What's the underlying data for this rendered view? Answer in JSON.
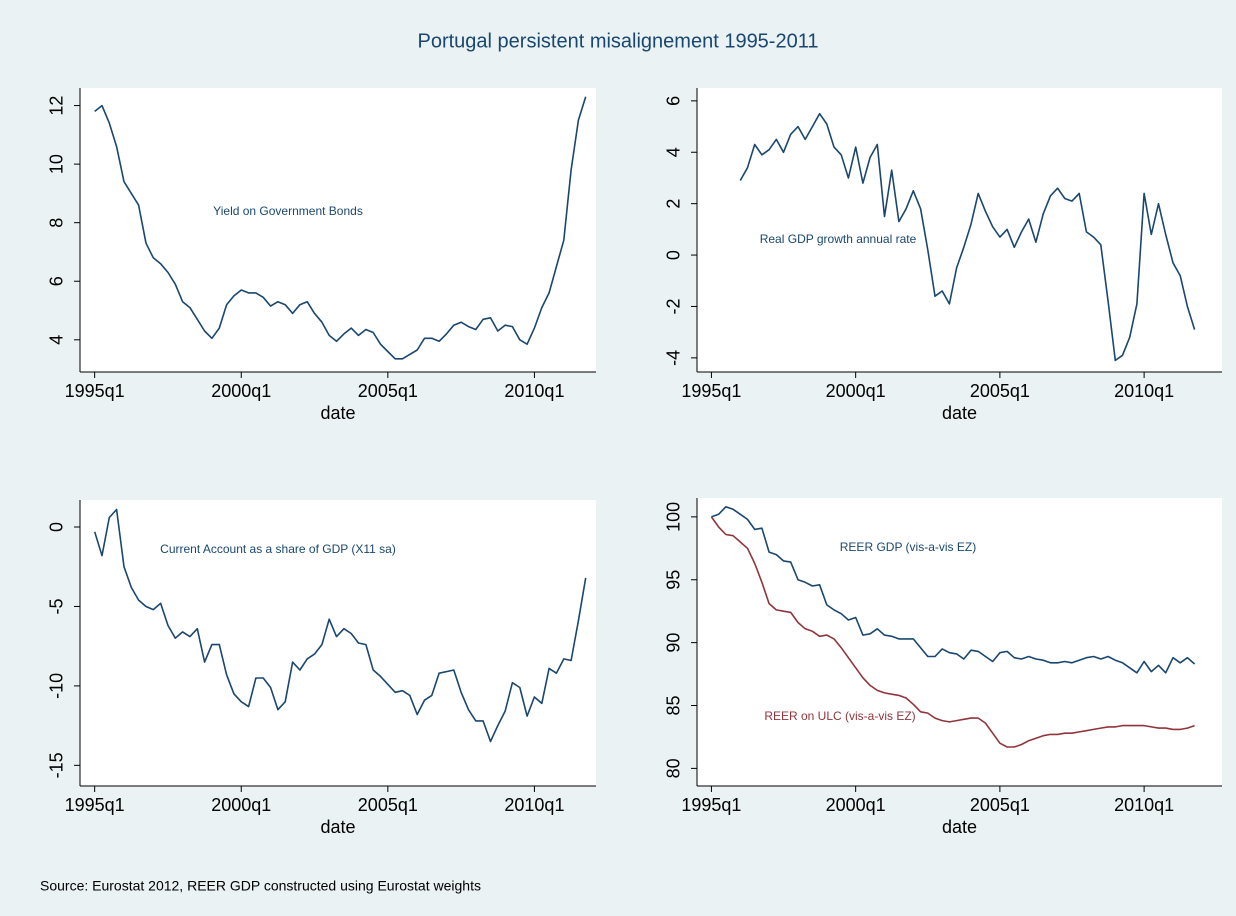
{
  "title": "Portugal persistent misalignement 1995-2011",
  "source": "Source: Eurostat 2012, REER GDP constructed using Eurostat weights",
  "chart_data": [
    {
      "type": "line",
      "x_label": "date",
      "x": [
        1995,
        1995.25,
        1995.5,
        1995.75,
        1996,
        1996.25,
        1996.5,
        1996.75,
        1997,
        1997.25,
        1997.5,
        1997.75,
        1998,
        1998.25,
        1998.5,
        1998.75,
        1999,
        1999.25,
        1999.5,
        1999.75,
        2000,
        2000.25,
        2000.5,
        2000.75,
        2001,
        2001.25,
        2001.5,
        2001.75,
        2002,
        2002.25,
        2002.5,
        2002.75,
        2003,
        2003.25,
        2003.5,
        2003.75,
        2004,
        2004.25,
        2004.5,
        2004.75,
        2005,
        2005.25,
        2005.5,
        2005.75,
        2006,
        2006.25,
        2006.5,
        2006.75,
        2007,
        2007.25,
        2007.5,
        2007.75,
        2008,
        2008.25,
        2008.5,
        2008.75,
        2009,
        2009.25,
        2009.5,
        2009.75,
        2010,
        2010.25,
        2010.5,
        2010.75,
        2011,
        2011.25,
        2011.5,
        2011.75
      ],
      "series": [
        {
          "name": "Yield on Government Bonds",
          "color": "#1a476f",
          "values": [
            11.8,
            12,
            11.4,
            10.6,
            9.4,
            9.0,
            8.6,
            7.3,
            6.8,
            6.6,
            6.3,
            5.9,
            5.3,
            5.1,
            4.7,
            4.3,
            4.05,
            4.4,
            5.2,
            5.5,
            5.7,
            5.6,
            5.6,
            5.45,
            5.15,
            5.3,
            5.2,
            4.9,
            5.2,
            5.3,
            4.9,
            4.6,
            4.15,
            3.95,
            4.2,
            4.4,
            4.15,
            4.35,
            4.25,
            3.85,
            3.6,
            3.35,
            3.35,
            3.5,
            3.65,
            4.05,
            4.05,
            3.95,
            4.2,
            4.5,
            4.6,
            4.45,
            4.35,
            4.7,
            4.75,
            4.3,
            4.5,
            4.45,
            4.0,
            3.85,
            4.4,
            5.1,
            5.6,
            6.5,
            7.4,
            9.8,
            11.5,
            12.3
          ]
        }
      ],
      "xlim": [
        1994.5,
        2012.1
      ],
      "xticks": [
        {
          "value": 1995,
          "label": "1995q1"
        },
        {
          "value": 2000,
          "label": "2000q1"
        },
        {
          "value": 2005,
          "label": "2005q1"
        },
        {
          "value": 2010,
          "label": "2010q1"
        }
      ],
      "ylim": [
        2.9,
        12.6
      ],
      "yticks": [
        4,
        6,
        8,
        10,
        12
      ]
    },
    {
      "type": "line",
      "x_label": "date",
      "x": [
        1995,
        1995.25,
        1995.5,
        1995.75,
        1996,
        1996.25,
        1996.5,
        1996.75,
        1997,
        1997.25,
        1997.5,
        1997.75,
        1998,
        1998.25,
        1998.5,
        1998.75,
        1999,
        1999.25,
        1999.5,
        1999.75,
        2000,
        2000.25,
        2000.5,
        2000.75,
        2001,
        2001.25,
        2001.5,
        2001.75,
        2002,
        2002.25,
        2002.5,
        2002.75,
        2003,
        2003.25,
        2003.5,
        2003.75,
        2004,
        2004.25,
        2004.5,
        2004.75,
        2005,
        2005.25,
        2005.5,
        2005.75,
        2006,
        2006.25,
        2006.5,
        2006.75,
        2007,
        2007.25,
        2007.5,
        2007.75,
        2008,
        2008.25,
        2008.5,
        2008.75,
        2009,
        2009.25,
        2009.5,
        2009.75,
        2010,
        2010.25,
        2010.5,
        2010.75,
        2011,
        2011.25,
        2011.5,
        2011.75
      ],
      "series": [
        {
          "name": "Real GDP growth annual rate",
          "color": "#1a476f",
          "values": [
            null,
            null,
            null,
            null,
            2.9,
            3.4,
            4.3,
            3.9,
            4.1,
            4.5,
            4.0,
            4.7,
            5.0,
            4.5,
            5.0,
            5.5,
            5.1,
            4.2,
            3.9,
            3.0,
            4.2,
            2.8,
            3.8,
            4.3,
            1.5,
            3.3,
            1.3,
            1.8,
            2.5,
            1.8,
            0.2,
            -1.6,
            -1.4,
            -1.9,
            -0.5,
            0.3,
            1.2,
            2.4,
            1.7,
            1.1,
            0.7,
            1.0,
            0.3,
            0.9,
            1.4,
            0.5,
            1.6,
            2.3,
            2.6,
            2.2,
            2.1,
            2.4,
            0.9,
            0.7,
            0.4,
            -1.8,
            -4.1,
            -3.9,
            -3.2,
            -1.9,
            2.4,
            0.8,
            2.0,
            0.8,
            -0.3,
            -0.8,
            -2.0,
            -2.9
          ]
        }
      ],
      "xlim": [
        1994.5,
        2012.7
      ],
      "xticks": [
        {
          "value": 1995,
          "label": "1995q1"
        },
        {
          "value": 2000,
          "label": "2000q1"
        },
        {
          "value": 2005,
          "label": "2005q1"
        },
        {
          "value": 2010,
          "label": "2010q1"
        }
      ],
      "ylim": [
        -4.55,
        6.5
      ],
      "yticks": [
        -4,
        -2,
        0,
        2,
        4,
        6
      ]
    },
    {
      "type": "line",
      "x_label": "date",
      "x": [
        1995,
        1995.25,
        1995.5,
        1995.75,
        1996,
        1996.25,
        1996.5,
        1996.75,
        1997,
        1997.25,
        1997.5,
        1997.75,
        1998,
        1998.25,
        1998.5,
        1998.75,
        1999,
        1999.25,
        1999.5,
        1999.75,
        2000,
        2000.25,
        2000.5,
        2000.75,
        2001,
        2001.25,
        2001.5,
        2001.75,
        2002,
        2002.25,
        2002.5,
        2002.75,
        2003,
        2003.25,
        2003.5,
        2003.75,
        2004,
        2004.25,
        2004.5,
        2004.75,
        2005,
        2005.25,
        2005.5,
        2005.75,
        2006,
        2006.25,
        2006.5,
        2006.75,
        2007,
        2007.25,
        2007.5,
        2007.75,
        2008,
        2008.25,
        2008.5,
        2008.75,
        2009,
        2009.25,
        2009.5,
        2009.75,
        2010,
        2010.25,
        2010.5,
        2010.75,
        2011,
        2011.25,
        2011.5,
        2011.75
      ],
      "series": [
        {
          "name": "Current Account as a share of GDP (X11 sa)",
          "color": "#1a476f",
          "values": [
            -0.3,
            -1.8,
            0.6,
            1.1,
            -2.5,
            -3.8,
            -4.6,
            -5.0,
            -5.2,
            -4.8,
            -6.2,
            -7.0,
            -6.6,
            -6.9,
            -6.4,
            -8.5,
            -7.4,
            -7.4,
            -9.3,
            -10.5,
            -11.0,
            -11.3,
            -9.5,
            -9.5,
            -10.1,
            -11.5,
            -11.0,
            -8.5,
            -9.0,
            -8.3,
            -8.0,
            -7.4,
            -5.8,
            -6.9,
            -6.4,
            -6.7,
            -7.3,
            -7.4,
            -9.0,
            -9.4,
            -9.9,
            -10.4,
            -10.3,
            -10.6,
            -11.8,
            -10.9,
            -10.6,
            -9.2,
            -9.1,
            -9.0,
            -10.4,
            -11.5,
            -12.2,
            -12.2,
            -13.5,
            -12.5,
            -11.6,
            -9.8,
            -10.1,
            -11.9,
            -10.7,
            -11.1,
            -8.9,
            -9.2,
            -8.3,
            -8.4,
            -5.9,
            -3.2
          ]
        }
      ],
      "xlim": [
        1994.5,
        2012.1
      ],
      "xticks": [
        {
          "value": 1995,
          "label": "1995q1"
        },
        {
          "value": 2000,
          "label": "2000q1"
        },
        {
          "value": 2005,
          "label": "2005q1"
        },
        {
          "value": 2010,
          "label": "2010q1"
        }
      ],
      "ylim": [
        -16.3,
        1.7
      ],
      "yticks": [
        -15,
        -10,
        -5,
        0
      ]
    },
    {
      "type": "line",
      "x_label": "date",
      "x": [
        1995,
        1995.25,
        1995.5,
        1995.75,
        1996,
        1996.25,
        1996.5,
        1996.75,
        1997,
        1997.25,
        1997.5,
        1997.75,
        1998,
        1998.25,
        1998.5,
        1998.75,
        1999,
        1999.25,
        1999.5,
        1999.75,
        2000,
        2000.25,
        2000.5,
        2000.75,
        2001,
        2001.25,
        2001.5,
        2001.75,
        2002,
        2002.25,
        2002.5,
        2002.75,
        2003,
        2003.25,
        2003.5,
        2003.75,
        2004,
        2004.25,
        2004.5,
        2004.75,
        2005,
        2005.25,
        2005.5,
        2005.75,
        2006,
        2006.25,
        2006.5,
        2006.75,
        2007,
        2007.25,
        2007.5,
        2007.75,
        2008,
        2008.25,
        2008.5,
        2008.75,
        2009,
        2009.25,
        2009.5,
        2009.75,
        2010,
        2010.25,
        2010.5,
        2010.75,
        2011,
        2011.25,
        2011.5,
        2011.75
      ],
      "series": [
        {
          "name": "REER GDP (vis-a-vis EZ)",
          "color": "#1a476f",
          "values": [
            100,
            100.2,
            100.8,
            100.6,
            100.2,
            99.8,
            99.0,
            99.1,
            97.2,
            97.0,
            96.5,
            96.4,
            95.0,
            94.8,
            94.5,
            94.6,
            93.0,
            92.6,
            92.3,
            91.8,
            92.0,
            90.6,
            90.7,
            91.1,
            90.6,
            90.5,
            90.3,
            90.3,
            90.3,
            89.6,
            88.9,
            88.9,
            89.5,
            89.2,
            89.1,
            88.7,
            89.4,
            89.3,
            88.9,
            88.5,
            89.2,
            89.3,
            88.8,
            88.7,
            88.9,
            88.7,
            88.6,
            88.4,
            88.4,
            88.5,
            88.4,
            88.6,
            88.8,
            88.9,
            88.7,
            88.9,
            88.6,
            88.4,
            88.0,
            87.6,
            88.5,
            87.7,
            88.2,
            87.6,
            88.8,
            88.4,
            88.8,
            88.3
          ]
        },
        {
          "name": "REER on ULC (vis-a-vis EZ)",
          "color": "#90353b",
          "values": [
            100,
            99.2,
            98.6,
            98.5,
            98.0,
            97.5,
            96.3,
            94.8,
            93.1,
            92.6,
            92.5,
            92.4,
            91.6,
            91.1,
            90.9,
            90.5,
            90.6,
            90.3,
            89.6,
            88.8,
            88.0,
            87.2,
            86.6,
            86.2,
            86.0,
            85.9,
            85.8,
            85.6,
            85.1,
            84.5,
            84.4,
            84.0,
            83.8,
            83.7,
            83.8,
            83.9,
            84.0,
            84.0,
            83.6,
            82.8,
            82.0,
            81.7,
            81.7,
            81.9,
            82.2,
            82.4,
            82.6,
            82.7,
            82.7,
            82.8,
            82.8,
            82.9,
            83.0,
            83.1,
            83.2,
            83.3,
            83.3,
            83.4,
            83.4,
            83.4,
            83.4,
            83.3,
            83.2,
            83.2,
            83.1,
            83.1,
            83.2,
            83.4
          ]
        }
      ],
      "xlim": [
        1994.5,
        2012.7
      ],
      "xticks": [
        {
          "value": 1995,
          "label": "1995q1"
        },
        {
          "value": 2000,
          "label": "2000q1"
        },
        {
          "value": 2005,
          "label": "2005q1"
        },
        {
          "value": 2010,
          "label": "2010q1"
        }
      ],
      "ylim": [
        78.6,
        101.5
      ],
      "yticks": [
        80,
        85,
        90,
        95,
        100
      ]
    }
  ]
}
